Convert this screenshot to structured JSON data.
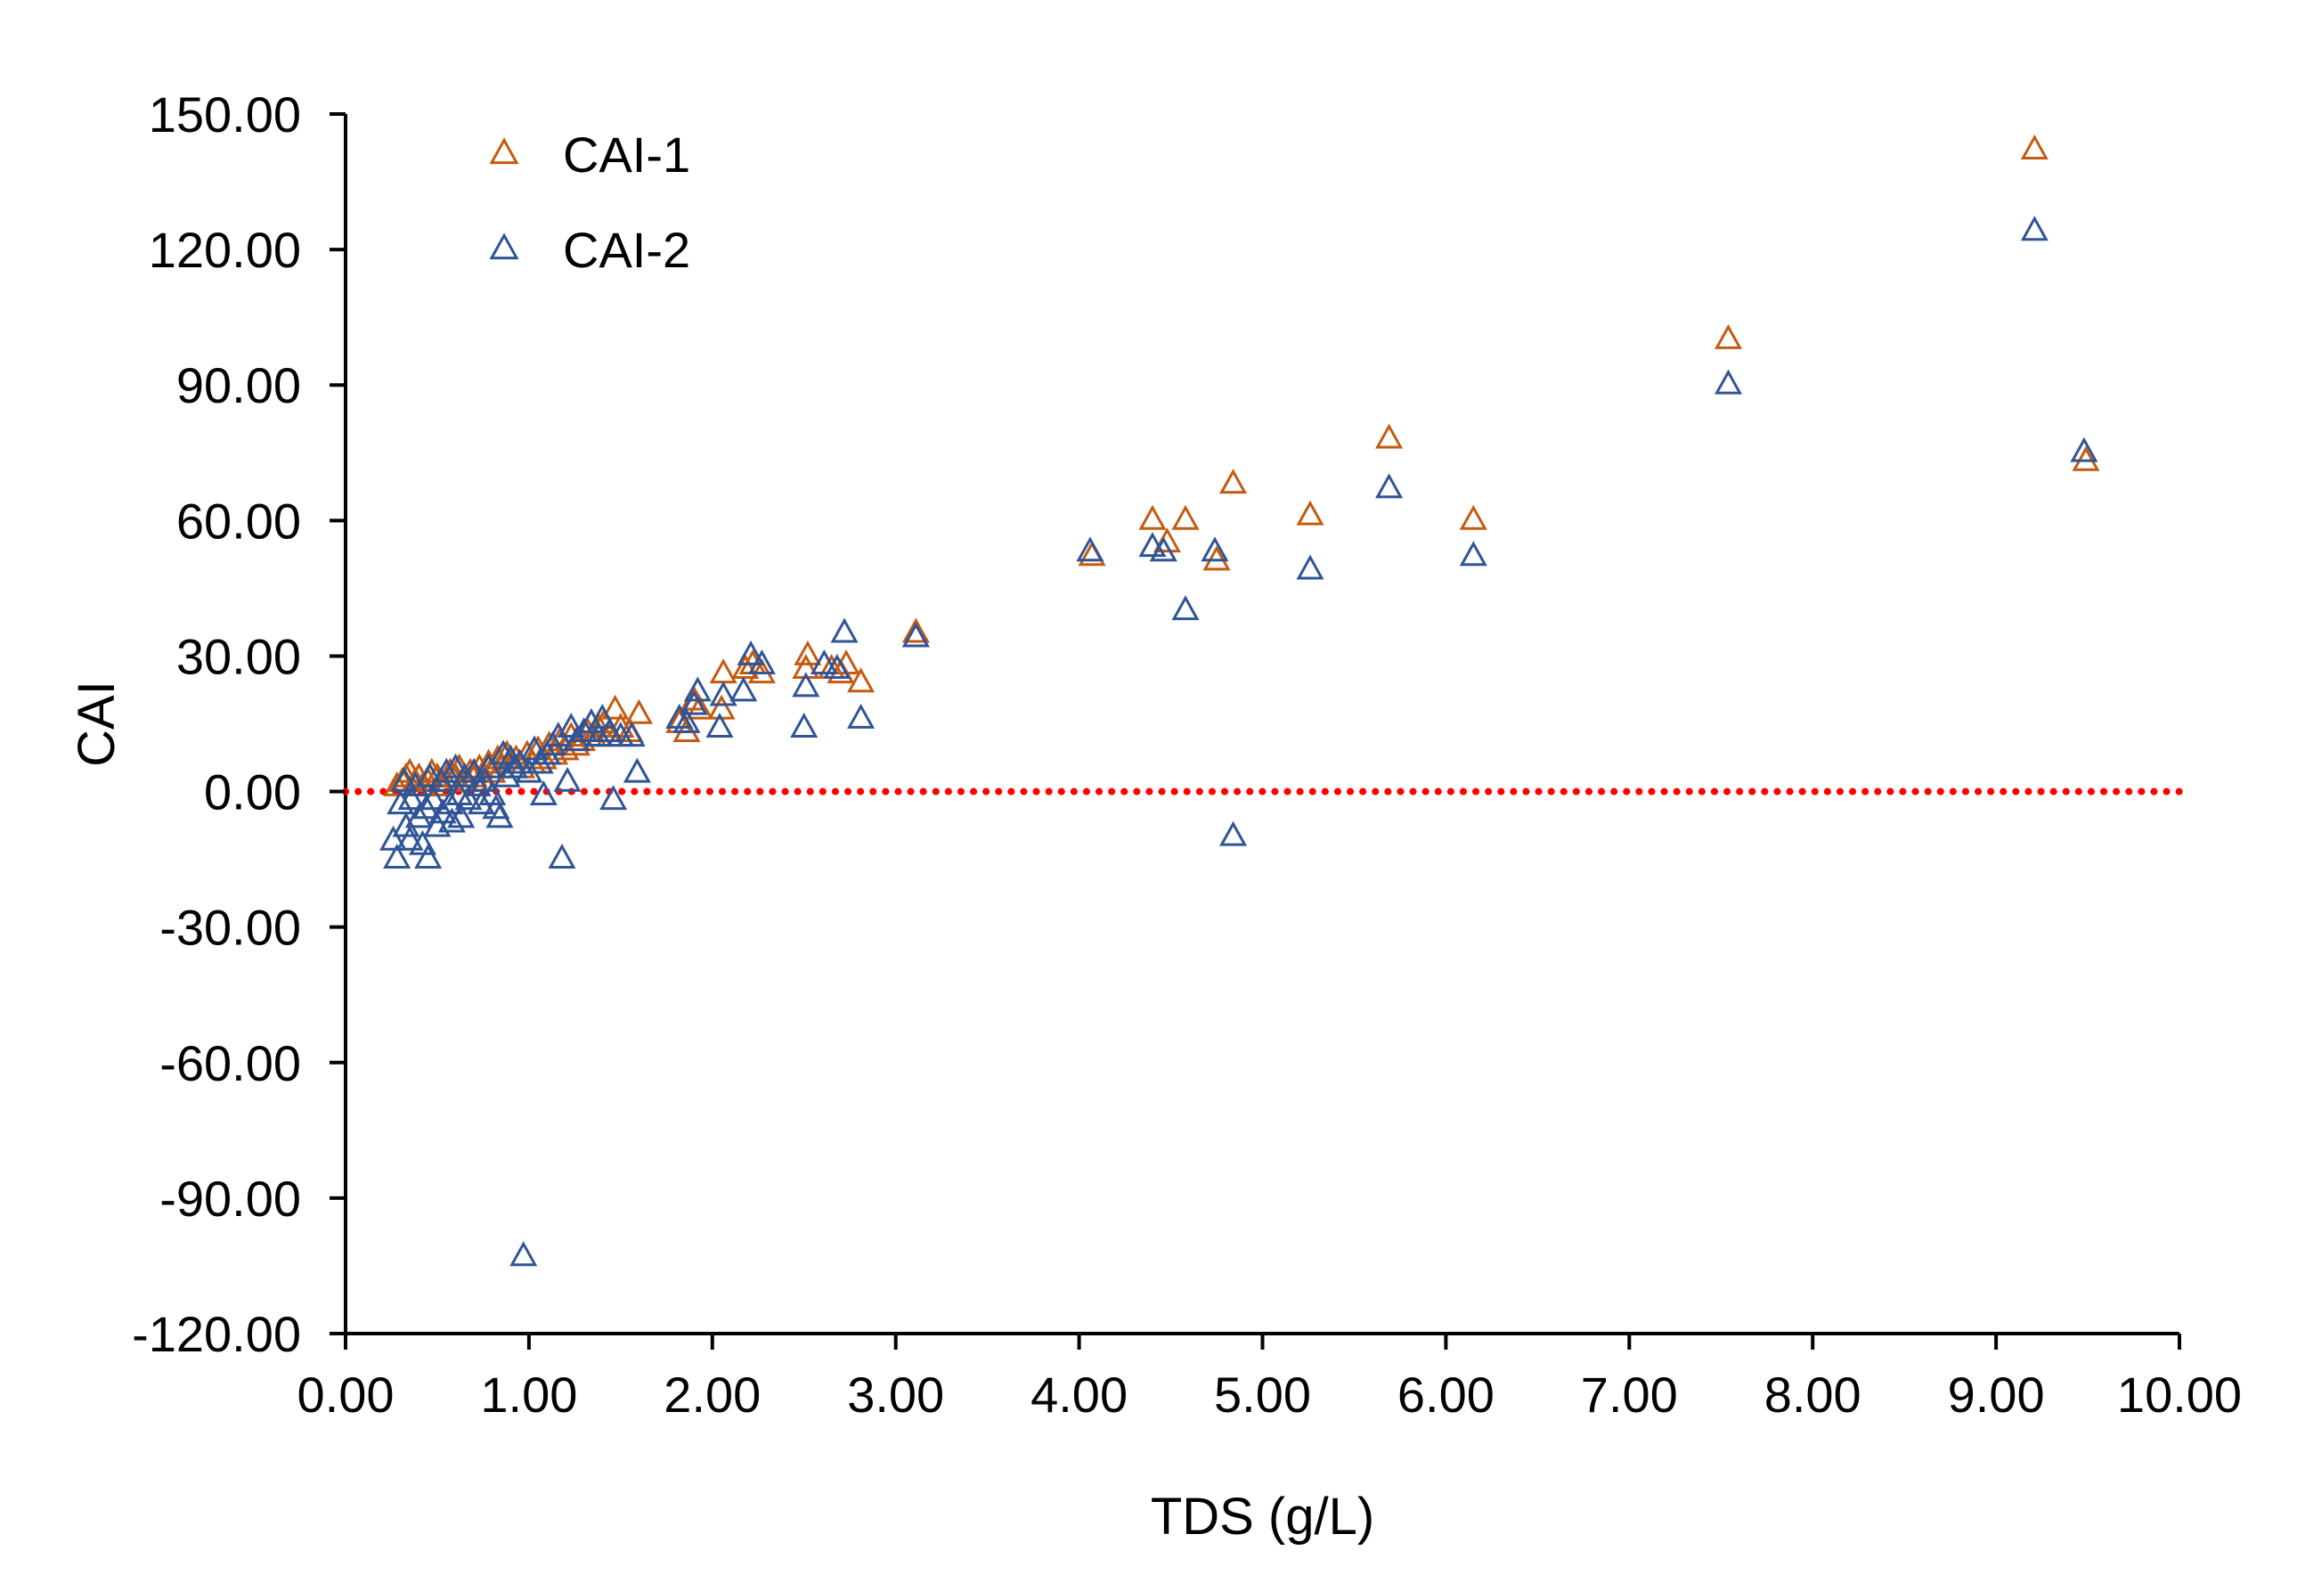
{
  "chart_data": {
    "type": "scatter",
    "title": "",
    "xlabel": "TDS (g/L)",
    "ylabel": "CAI",
    "xlim": [
      0,
      10
    ],
    "ylim": [
      -120,
      150
    ],
    "xticks": [
      0,
      1,
      2,
      3,
      4,
      5,
      6,
      7,
      8,
      9,
      10
    ],
    "yticks": [
      -120,
      -90,
      -60,
      -30,
      0,
      30,
      60,
      90,
      120,
      150
    ],
    "x_tick_labels": [
      "0.00",
      "1.00",
      "2.00",
      "3.00",
      "4.00",
      "5.00",
      "6.00",
      "7.00",
      "8.00",
      "9.00",
      "10.00"
    ],
    "y_tick_labels": [
      "-120.00",
      "-90.00",
      "-60.00",
      "-30.00",
      "0.00",
      "30.00",
      "60.00",
      "90.00",
      "120.00",
      "150.00"
    ],
    "grid": false,
    "legend_position": "top-left",
    "reference_line": {
      "y": 0,
      "style": "dotted",
      "color": "#ff0000"
    },
    "series": [
      {
        "name": "CAI-1",
        "color": "#c55a11",
        "marker": "triangle-open",
        "points": [
          [
            0.28,
            1
          ],
          [
            0.31,
            2
          ],
          [
            0.33,
            3
          ],
          [
            0.35,
            4
          ],
          [
            0.38,
            2
          ],
          [
            0.4,
            3
          ],
          [
            0.42,
            1
          ],
          [
            0.45,
            2
          ],
          [
            0.47,
            4
          ],
          [
            0.5,
            3
          ],
          [
            0.52,
            1
          ],
          [
            0.55,
            2
          ],
          [
            0.57,
            4
          ],
          [
            0.6,
            3
          ],
          [
            0.62,
            5
          ],
          [
            0.65,
            2
          ],
          [
            0.68,
            4
          ],
          [
            0.7,
            3
          ],
          [
            0.73,
            5
          ],
          [
            0.75,
            2
          ],
          [
            0.78,
            6
          ],
          [
            0.8,
            4
          ],
          [
            0.83,
            7
          ],
          [
            0.85,
            5
          ],
          [
            0.88,
            8
          ],
          [
            0.9,
            6
          ],
          [
            0.93,
            7
          ],
          [
            0.96,
            5
          ],
          [
            0.99,
            8
          ],
          [
            1.02,
            6
          ],
          [
            1.05,
            9
          ],
          [
            1.08,
            7
          ],
          [
            1.11,
            10
          ],
          [
            1.14,
            8
          ],
          [
            1.17,
            11
          ],
          [
            1.2,
            9
          ],
          [
            1.23,
            12
          ],
          [
            1.26,
            10
          ],
          [
            1.29,
            11
          ],
          [
            1.32,
            13
          ],
          [
            1.35,
            12
          ],
          [
            1.38,
            14
          ],
          [
            1.41,
            15
          ],
          [
            1.44,
            12
          ],
          [
            1.47,
            18
          ],
          [
            1.5,
            14
          ],
          [
            1.55,
            13
          ],
          [
            1.6,
            17
          ],
          [
            1.82,
            15
          ],
          [
            1.86,
            13
          ],
          [
            1.9,
            20
          ],
          [
            1.93,
            18
          ],
          [
            2.05,
            18
          ],
          [
            2.06,
            26
          ],
          [
            2.18,
            27
          ],
          [
            2.22,
            28
          ],
          [
            2.27,
            26
          ],
          [
            2.51,
            27
          ],
          [
            2.52,
            30
          ],
          [
            2.65,
            27
          ],
          [
            2.7,
            26
          ],
          [
            2.73,
            28
          ],
          [
            2.81,
            24
          ],
          [
            3.11,
            35
          ],
          [
            4.07,
            52
          ],
          [
            4.4,
            60
          ],
          [
            4.48,
            55
          ],
          [
            4.58,
            60
          ],
          [
            4.75,
            51
          ],
          [
            4.84,
            68
          ],
          [
            5.26,
            61
          ],
          [
            5.69,
            78
          ],
          [
            6.15,
            60
          ],
          [
            7.54,
            100
          ],
          [
            9.21,
            142
          ],
          [
            9.49,
            73
          ]
        ]
      },
      {
        "name": "CAI-2",
        "color": "#2f5597",
        "marker": "triangle-open",
        "points": [
          [
            0.26,
            -11
          ],
          [
            0.28,
            -15
          ],
          [
            0.3,
            -3
          ],
          [
            0.32,
            2
          ],
          [
            0.33,
            -8
          ],
          [
            0.35,
            -11
          ],
          [
            0.36,
            -2
          ],
          [
            0.38,
            1
          ],
          [
            0.4,
            -6
          ],
          [
            0.42,
            -12
          ],
          [
            0.44,
            -4
          ],
          [
            0.45,
            -15
          ],
          [
            0.46,
            3
          ],
          [
            0.48,
            -2
          ],
          [
            0.5,
            -8
          ],
          [
            0.52,
            2
          ],
          [
            0.53,
            -5
          ],
          [
            0.55,
            4
          ],
          [
            0.57,
            -3
          ],
          [
            0.58,
            -7
          ],
          [
            0.6,
            5
          ],
          [
            0.62,
            -1
          ],
          [
            0.63,
            -6
          ],
          [
            0.65,
            3
          ],
          [
            0.67,
            -2
          ],
          [
            0.7,
            4
          ],
          [
            0.72,
            1
          ],
          [
            0.74,
            -3
          ],
          [
            0.76,
            2
          ],
          [
            0.78,
            5
          ],
          [
            0.8,
            -1
          ],
          [
            0.82,
            -4
          ],
          [
            0.84,
            -6
          ],
          [
            0.86,
            8
          ],
          [
            0.88,
            3
          ],
          [
            0.9,
            7
          ],
          [
            0.92,
            5
          ],
          [
            0.95,
            6
          ],
          [
            0.97,
            -103
          ],
          [
            1.0,
            4
          ],
          [
            1.03,
            9
          ],
          [
            1.06,
            6
          ],
          [
            1.08,
            -1
          ],
          [
            1.1,
            8
          ],
          [
            1.13,
            10
          ],
          [
            1.16,
            12
          ],
          [
            1.18,
            -15
          ],
          [
            1.21,
            2
          ],
          [
            1.23,
            14
          ],
          [
            1.26,
            11
          ],
          [
            1.3,
            13
          ],
          [
            1.34,
            15
          ],
          [
            1.38,
            12
          ],
          [
            1.4,
            16
          ],
          [
            1.44,
            13
          ],
          [
            1.46,
            -2
          ],
          [
            1.5,
            12
          ],
          [
            1.56,
            12
          ],
          [
            1.59,
            4
          ],
          [
            1.82,
            16
          ],
          [
            1.86,
            15
          ],
          [
            1.9,
            19
          ],
          [
            1.92,
            22
          ],
          [
            2.04,
            14
          ],
          [
            2.06,
            21
          ],
          [
            2.17,
            22
          ],
          [
            2.21,
            30
          ],
          [
            2.27,
            28
          ],
          [
            2.5,
            14
          ],
          [
            2.51,
            23
          ],
          [
            2.61,
            28
          ],
          [
            2.68,
            27
          ],
          [
            2.72,
            35
          ],
          [
            2.81,
            16
          ],
          [
            3.11,
            34
          ],
          [
            4.06,
            53
          ],
          [
            4.4,
            54
          ],
          [
            4.46,
            53
          ],
          [
            4.58,
            40
          ],
          [
            4.74,
            53
          ],
          [
            4.84,
            -10
          ],
          [
            5.26,
            49
          ],
          [
            5.69,
            67
          ],
          [
            6.15,
            52
          ],
          [
            7.54,
            90
          ],
          [
            9.21,
            124
          ],
          [
            9.48,
            75
          ]
        ]
      }
    ]
  }
}
